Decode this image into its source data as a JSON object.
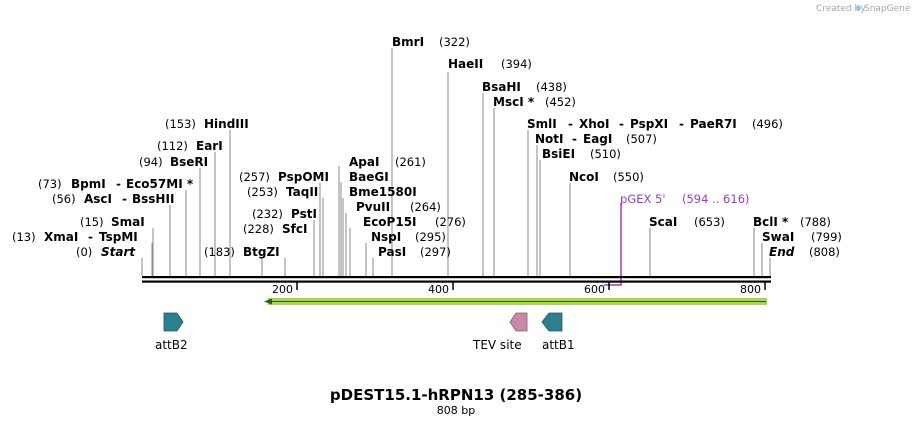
{
  "credit": {
    "prefix": "Created by",
    "brand": "SnapGene"
  },
  "map": {
    "title": "pDEST15.1-hRPN13 (285-386)",
    "length": "808 bp",
    "ticks": [
      "200",
      "400",
      "600",
      "800"
    ]
  },
  "sites": [
    {
      "name": "BmrI",
      "pos": "(322)"
    },
    {
      "name": "HaeII",
      "pos": "(394)"
    },
    {
      "name": "BsaHI",
      "pos": "(438)"
    },
    {
      "name": "MscI *",
      "pos": "(452)"
    },
    {
      "name": "SmlI",
      "extra": [
        "XhoI",
        "PspXI",
        "PaeR7I"
      ],
      "pos": "(496)"
    },
    {
      "name": "NotI",
      "extra": [
        "EagI"
      ],
      "pos": "(507)"
    },
    {
      "name": "BsiEI",
      "pos": "(510)"
    },
    {
      "name": "NcoI",
      "pos": "(550)"
    },
    {
      "name": "HindIII",
      "pos": "(153)"
    },
    {
      "name": "EarI",
      "pos": "(112)"
    },
    {
      "name": "BseRI",
      "pos": "(94)"
    },
    {
      "name": "BpmI",
      "extra": [
        "Eco57MI *"
      ],
      "pos": "(73)"
    },
    {
      "name": "AscI",
      "extra": [
        "BssHII"
      ],
      "pos": "(56)"
    },
    {
      "name": "SmaI",
      "pos": "(15)"
    },
    {
      "name": "XmaI",
      "extra": [
        "TspMI"
      ],
      "pos": "(13)"
    },
    {
      "name": "Start",
      "pos": "(0)"
    },
    {
      "name": "BtgZI",
      "pos": "(183)"
    },
    {
      "name": "PspOMI",
      "pos": "(257)"
    },
    {
      "name": "TaqII",
      "pos": "(253)"
    },
    {
      "name": "PstI",
      "pos": "(232)"
    },
    {
      "name": "SfcI",
      "pos": "(228)"
    },
    {
      "name": "ApaI",
      "pos": "(261)"
    },
    {
      "name": "BaeGI",
      "pos": ""
    },
    {
      "name": "Bme1580I",
      "pos": ""
    },
    {
      "name": "PvuII",
      "pos": "(264)"
    },
    {
      "name": "EcoP15I",
      "pos": "(276)"
    },
    {
      "name": "NspI",
      "pos": "(295)"
    },
    {
      "name": "PasI",
      "pos": "(297)"
    },
    {
      "name": "ScaI",
      "pos": "(653)"
    },
    {
      "name": "BclI *",
      "pos": "(788)"
    },
    {
      "name": "SwaI",
      "pos": "(799)"
    },
    {
      "name": "End",
      "pos": "(808)"
    }
  ],
  "primer": {
    "name": "pGEX 5'",
    "range": "(594 .. 616)",
    "color": "#9a3cc8"
  },
  "features": [
    {
      "label": "attB2",
      "color": "#2e7f90"
    },
    {
      "label": "TEV site",
      "color": "#c98aa8"
    },
    {
      "label": "attB1",
      "color": "#2e7f90"
    }
  ],
  "orf_color": "#9bd23c"
}
